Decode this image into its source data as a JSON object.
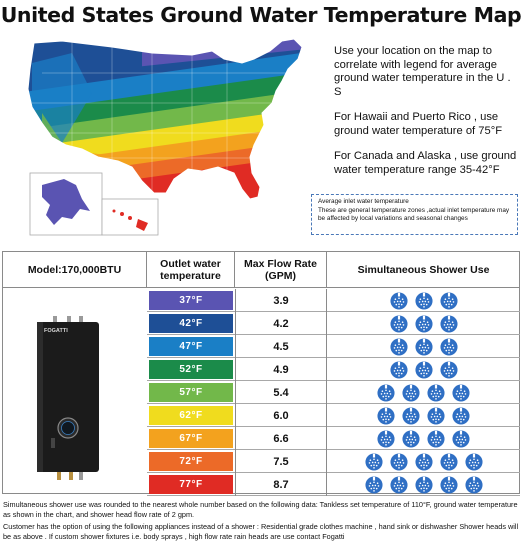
{
  "title": "United States Ground Water Temperature Map",
  "info": {
    "p1": "Use your location on the map to correlate with legend for average ground water temperature in the U . S",
    "p2": "For Hawaii and Puerto Rico , use ground water temperature of 75°F",
    "p3": "For Canada and Alaska , use ground water temperature range 35-42°F"
  },
  "legend_note": {
    "line1": "Average inlet water temperature",
    "line2": "These are general temperature zones ,actual inlet temperature may be affected by local variations and seasonal changes"
  },
  "table": {
    "headers": {
      "model": "Model:170,000BTU",
      "temp": "Outlet water temperature",
      "flow": "Max Flow Rate (GPM)",
      "shower": "Simultaneous Shower Use"
    },
    "heater_brand": "FOGATTI",
    "rows": [
      {
        "temp": "37°F",
        "color": "#5a54b2",
        "flow": "3.9",
        "showers": 3
      },
      {
        "temp": "42°F",
        "color": "#1e4f96",
        "flow": "4.2",
        "showers": 3
      },
      {
        "temp": "47°F",
        "color": "#1a7fc6",
        "flow": "4.5",
        "showers": 3
      },
      {
        "temp": "52°F",
        "color": "#1b8b4a",
        "flow": "4.9",
        "showers": 3
      },
      {
        "temp": "57°F",
        "color": "#72b84a",
        "flow": "5.4",
        "showers": 4
      },
      {
        "temp": "62°F",
        "color": "#f0dc1e",
        "flow": "6.0",
        "showers": 4
      },
      {
        "temp": "67°F",
        "color": "#f3a21e",
        "flow": "6.6",
        "showers": 4
      },
      {
        "temp": "72°F",
        "color": "#ec6a28",
        "flow": "7.5",
        "showers": 5
      },
      {
        "temp": "77°F",
        "color": "#e02b24",
        "flow": "8.7",
        "showers": 5
      }
    ]
  },
  "footnotes": {
    "f1": "Simultaneous shower use was rounded to the nearest whole number based on the following data: Tankless set temperature of 110°F, ground water temperature as shown in the chart, and shower head flow rate of 2 gpm.",
    "f2": "Customer has the option of using the following appliances instead of a shower : Residential grade clothes machine , hand sink or dishwasher Shower heads will be as above . If custom shower fixtures i.e. body sprays , high flow rate rain heads are use contact Fogatti"
  },
  "colors": {
    "shower_blue": "#2f6fc4",
    "border": "#8a8a8a"
  }
}
